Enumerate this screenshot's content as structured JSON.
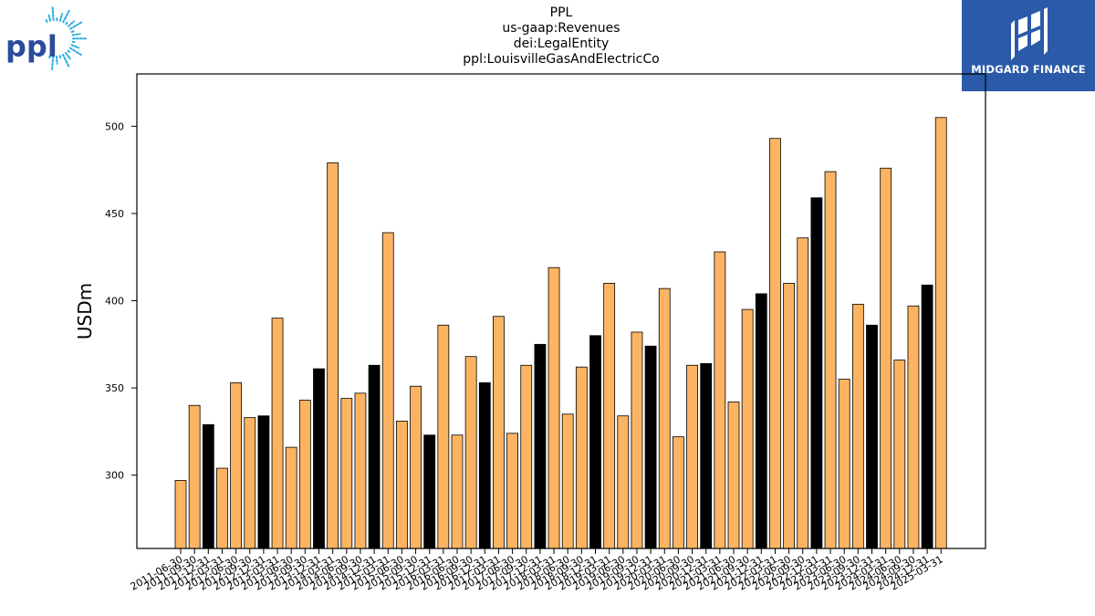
{
  "header": {
    "title_lines": [
      "PPL",
      "us-gaap:Revenues",
      "dei:LegalEntity",
      "ppl:LouisvilleGasAndElectricCo"
    ]
  },
  "logos": {
    "left_text": "ppl",
    "right_text": "MIDGARD FINANCE",
    "right_bg_color": "#2a5aa8",
    "left_color": "#2b4c9b",
    "left_rays_color": "#29abe2"
  },
  "colors": {
    "bar_default": "#fdb462",
    "bar_highlight": "#000000",
    "bar_edge": "#000000"
  },
  "chart_data": {
    "type": "bar",
    "title": "PPL\nus-gaap:Revenues\ndei:LegalEntity\nppl:LouisvilleGasAndElectricCo",
    "xlabel": "",
    "ylabel": "USDm",
    "ylim": [
      258,
      530
    ],
    "yticks": [
      300,
      350,
      400,
      450,
      500
    ],
    "grid": false,
    "categories": [
      "2011-06-30",
      "2011-09-30",
      "2011-12-31",
      "2012-03-31",
      "2012-06-30",
      "2012-09-30",
      "2012-12-31",
      "2013-03-31",
      "2013-06-30",
      "2013-09-30",
      "2013-12-31",
      "2014-03-31",
      "2014-06-30",
      "2014-09-30",
      "2014-12-31",
      "2015-03-31",
      "2015-06-30",
      "2015-09-30",
      "2015-12-31",
      "2016-03-31",
      "2016-06-30",
      "2016-09-30",
      "2016-12-31",
      "2017-03-31",
      "2017-06-30",
      "2017-09-30",
      "2017-12-31",
      "2018-03-31",
      "2018-06-30",
      "2018-09-30",
      "2018-12-31",
      "2019-03-31",
      "2019-06-30",
      "2019-09-30",
      "2019-12-31",
      "2020-03-31",
      "2020-06-30",
      "2020-09-30",
      "2020-12-31",
      "2021-03-31",
      "2021-06-30",
      "2021-09-30",
      "2021-12-31",
      "2022-03-31",
      "2022-06-30",
      "2022-09-30",
      "2022-12-31",
      "2023-03-31",
      "2023-06-30",
      "2023-09-30",
      "2023-12-31",
      "2024-03-31",
      "2024-06-30",
      "2024-09-30",
      "2024-12-31",
      "2025-03-31"
    ],
    "values": [
      297,
      340,
      329,
      304,
      353,
      333,
      334,
      390,
      316,
      343,
      361,
      479,
      344,
      347,
      363,
      439,
      331,
      351,
      323,
      386,
      323,
      368,
      353,
      391,
      324,
      363,
      375,
      419,
      335,
      362,
      380,
      410,
      334,
      382,
      374,
      407,
      322,
      363,
      364,
      428,
      342,
      395,
      404,
      493,
      410,
      436,
      459,
      474,
      355,
      398,
      386,
      476,
      366,
      397,
      409,
      505
    ],
    "highlight": [
      false,
      false,
      true,
      false,
      false,
      false,
      true,
      false,
      false,
      false,
      true,
      false,
      false,
      false,
      true,
      false,
      false,
      false,
      true,
      false,
      false,
      false,
      true,
      false,
      false,
      false,
      true,
      false,
      false,
      false,
      true,
      false,
      false,
      false,
      true,
      false,
      false,
      false,
      true,
      false,
      false,
      false,
      true,
      false,
      false,
      false,
      true,
      false,
      false,
      false,
      true,
      false,
      false,
      false,
      true,
      false
    ]
  }
}
